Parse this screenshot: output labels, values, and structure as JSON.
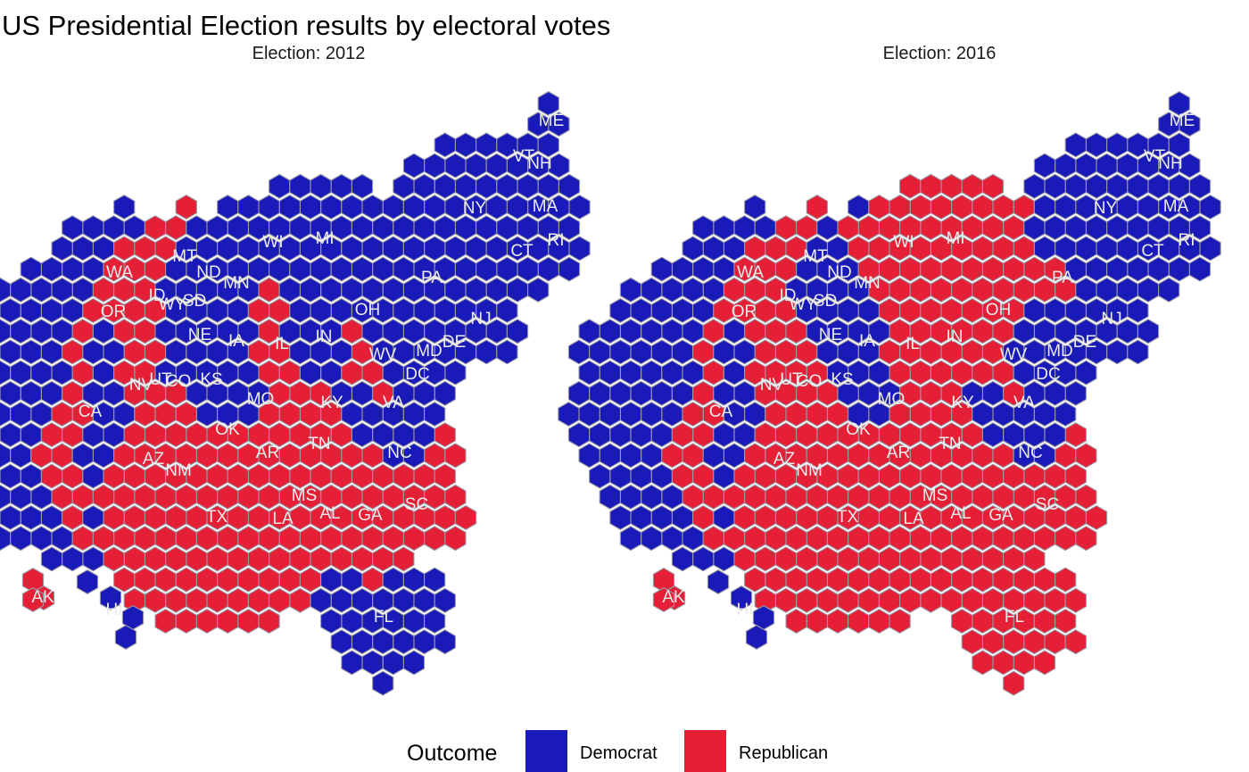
{
  "title": "US Presidential Election results by electoral votes",
  "legend": {
    "title": "Outcome",
    "items": [
      {
        "label": "Democrat",
        "color": "#1a1ab8"
      },
      {
        "label": "Republican",
        "color": "#e41f36"
      }
    ]
  },
  "hex_stroke": "#9a9aa6",
  "label_color": "#ebebeb",
  "panels": [
    {
      "title": "Election: 2012",
      "outcomes": {
        "WA": "D",
        "OR": "D",
        "CA": "D",
        "NV": "D",
        "ID": "R",
        "MT": "R",
        "WY": "R",
        "UT": "R",
        "AZ": "R",
        "NM": "D",
        "CO": "D",
        "ND": "R",
        "SD": "R",
        "NE": "R",
        "KS": "R",
        "OK": "R",
        "TX": "R",
        "MN": "D",
        "IA": "D",
        "MO": "R",
        "AR": "R",
        "LA": "R",
        "WI": "D",
        "IL": "D",
        "MI": "D",
        "IN": "R",
        "OH": "D",
        "KY": "R",
        "TN": "R",
        "MS": "R",
        "AL": "R",
        "GA": "R",
        "FL": "D",
        "SC": "R",
        "NC": "R",
        "VA": "D",
        "WV": "R",
        "PA": "D",
        "NY": "D",
        "VT": "D",
        "NH": "D",
        "ME": "D",
        "MA": "D",
        "RI": "D",
        "CT": "D",
        "NJ": "D",
        "DE": "D",
        "MD": "D",
        "DC": "D",
        "AK": "R",
        "HI": "D"
      }
    },
    {
      "title": "Election: 2016",
      "outcomes": {
        "WA": "D",
        "OR": "D",
        "CA": "D",
        "NV": "D",
        "ID": "R",
        "MT": "R",
        "WY": "R",
        "UT": "R",
        "AZ": "R",
        "NM": "D",
        "CO": "D",
        "ND": "R",
        "SD": "R",
        "NE": "R",
        "KS": "R",
        "OK": "R",
        "TX": "R",
        "MN": "D",
        "IA": "R",
        "MO": "R",
        "AR": "R",
        "LA": "R",
        "WI": "R",
        "IL": "D",
        "MI": "R",
        "IN": "R",
        "OH": "R",
        "KY": "R",
        "TN": "R",
        "MS": "R",
        "AL": "R",
        "GA": "R",
        "FL": "R",
        "SC": "R",
        "NC": "R",
        "VA": "D",
        "WV": "R",
        "PA": "R",
        "NY": "D",
        "VT": "D",
        "NH": "D",
        "ME": "D",
        "MA": "D",
        "RI": "D",
        "CT": "D",
        "NJ": "D",
        "DE": "D",
        "MD": "D",
        "DC": "D",
        "AK": "R",
        "HI": "D"
      }
    }
  ],
  "states": [
    {
      "abbr": "WA",
      "ev": 12
    },
    {
      "abbr": "OR",
      "ev": 7
    },
    {
      "abbr": "CA",
      "ev": 55
    },
    {
      "abbr": "NV",
      "ev": 6
    },
    {
      "abbr": "ID",
      "ev": 4
    },
    {
      "abbr": "MT",
      "ev": 3
    },
    {
      "abbr": "WY",
      "ev": 3
    },
    {
      "abbr": "UT",
      "ev": 6
    },
    {
      "abbr": "AZ",
      "ev": 11
    },
    {
      "abbr": "NM",
      "ev": 5
    },
    {
      "abbr": "CO",
      "ev": 9
    },
    {
      "abbr": "ND",
      "ev": 3
    },
    {
      "abbr": "SD",
      "ev": 3
    },
    {
      "abbr": "NE",
      "ev": 5
    },
    {
      "abbr": "KS",
      "ev": 6
    },
    {
      "abbr": "OK",
      "ev": 7
    },
    {
      "abbr": "TX",
      "ev": 38
    },
    {
      "abbr": "MN",
      "ev": 10
    },
    {
      "abbr": "IA",
      "ev": 6
    },
    {
      "abbr": "MO",
      "ev": 10
    },
    {
      "abbr": "AR",
      "ev": 6
    },
    {
      "abbr": "LA",
      "ev": 8
    },
    {
      "abbr": "WI",
      "ev": 10
    },
    {
      "abbr": "IL",
      "ev": 20
    },
    {
      "abbr": "MI",
      "ev": 16
    },
    {
      "abbr": "IN",
      "ev": 11
    },
    {
      "abbr": "OH",
      "ev": 18
    },
    {
      "abbr": "KY",
      "ev": 8
    },
    {
      "abbr": "TN",
      "ev": 11
    },
    {
      "abbr": "MS",
      "ev": 6
    },
    {
      "abbr": "AL",
      "ev": 9
    },
    {
      "abbr": "GA",
      "ev": 16
    },
    {
      "abbr": "FL",
      "ev": 29
    },
    {
      "abbr": "SC",
      "ev": 9
    },
    {
      "abbr": "NC",
      "ev": 15
    },
    {
      "abbr": "VA",
      "ev": 13
    },
    {
      "abbr": "WV",
      "ev": 5
    },
    {
      "abbr": "PA",
      "ev": 20
    },
    {
      "abbr": "NY",
      "ev": 29
    },
    {
      "abbr": "VT",
      "ev": 3
    },
    {
      "abbr": "NH",
      "ev": 4
    },
    {
      "abbr": "ME",
      "ev": 4
    },
    {
      "abbr": "MA",
      "ev": 11
    },
    {
      "abbr": "RI",
      "ev": 4
    },
    {
      "abbr": "CT",
      "ev": 7
    },
    {
      "abbr": "NJ",
      "ev": 14
    },
    {
      "abbr": "DE",
      "ev": 3
    },
    {
      "abbr": "MD",
      "ev": 10
    },
    {
      "abbr": "DC",
      "ev": 3
    },
    {
      "abbr": "AK",
      "ev": 3
    },
    {
      "abbr": "HI",
      "ev": 4
    }
  ]
}
